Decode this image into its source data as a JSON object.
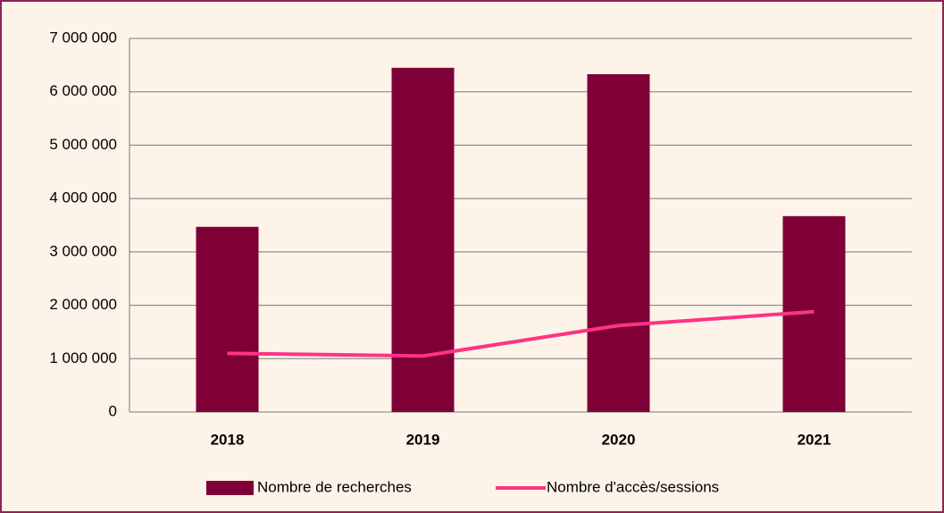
{
  "chart_data": {
    "type": "bar",
    "categories": [
      "2018",
      "2019",
      "2020",
      "2021"
    ],
    "series": [
      {
        "name": "Nombre de recherches",
        "type": "bar",
        "color": "#7f0037",
        "values": [
          3470000,
          6450000,
          6330000,
          3670000
        ]
      },
      {
        "name": "Nombre d'accès/sessions",
        "type": "line",
        "color": "#ff3385",
        "values": [
          1100000,
          1050000,
          1620000,
          1880000
        ]
      }
    ],
    "ylim": [
      0,
      7000000
    ],
    "yticks": [
      0,
      {
        "value": 1000000,
        "label": "1 000 000"
      },
      {
        "value": 2000000,
        "label": "2 000 000"
      },
      {
        "value": 3000000,
        "label": "3 000 000"
      },
      {
        "value": 4000000,
        "label": "4 000 000"
      },
      {
        "value": 5000000,
        "label": "5 000 000"
      },
      {
        "value": 6000000,
        "label": "6 000 000"
      },
      {
        "value": 7000000,
        "label": "7 000 000"
      }
    ],
    "grid": true,
    "legend": "bottom"
  }
}
